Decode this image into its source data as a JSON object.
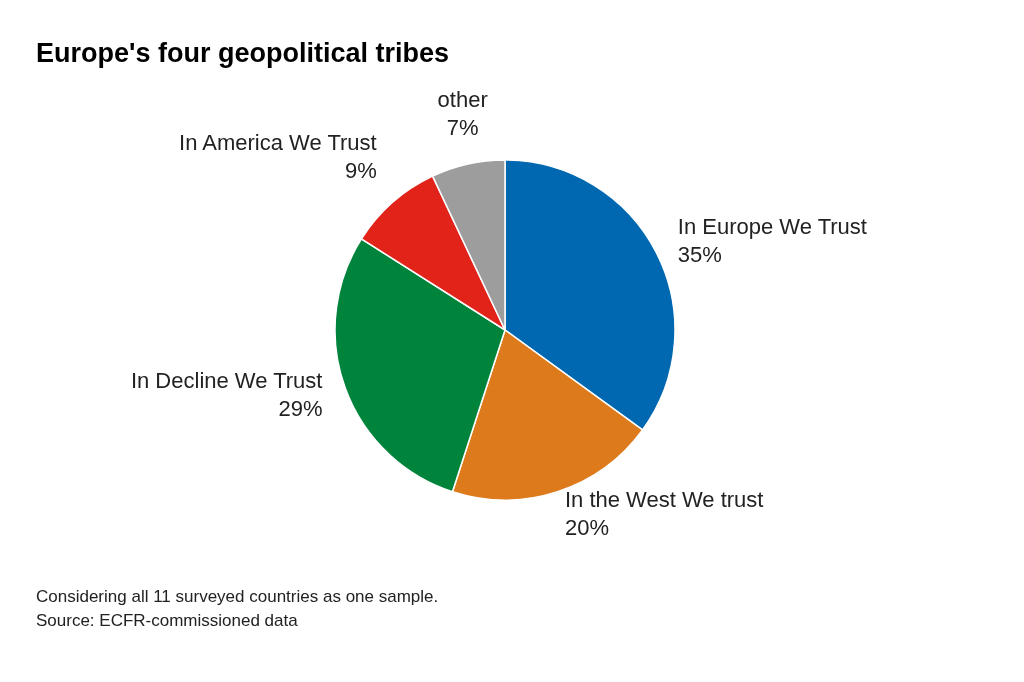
{
  "chart_data": {
    "type": "pie",
    "title": "Europe's four geopolitical tribes",
    "categories": [
      "In Europe We Trust",
      "In the West We trust",
      "In Decline We Trust",
      "In America We Trust",
      "other"
    ],
    "values": [
      35,
      20,
      29,
      9,
      7
    ],
    "value_labels": [
      "35%",
      "20%",
      "29%",
      "9%",
      "7%"
    ],
    "colors": [
      "#0068b0",
      "#dd7a1c",
      "#00843b",
      "#e2231a",
      "#9d9d9d"
    ],
    "annotations": [
      "Considering all 11 surveyed countries as one sample.",
      "Source: ECFR-commissioned data"
    ]
  }
}
